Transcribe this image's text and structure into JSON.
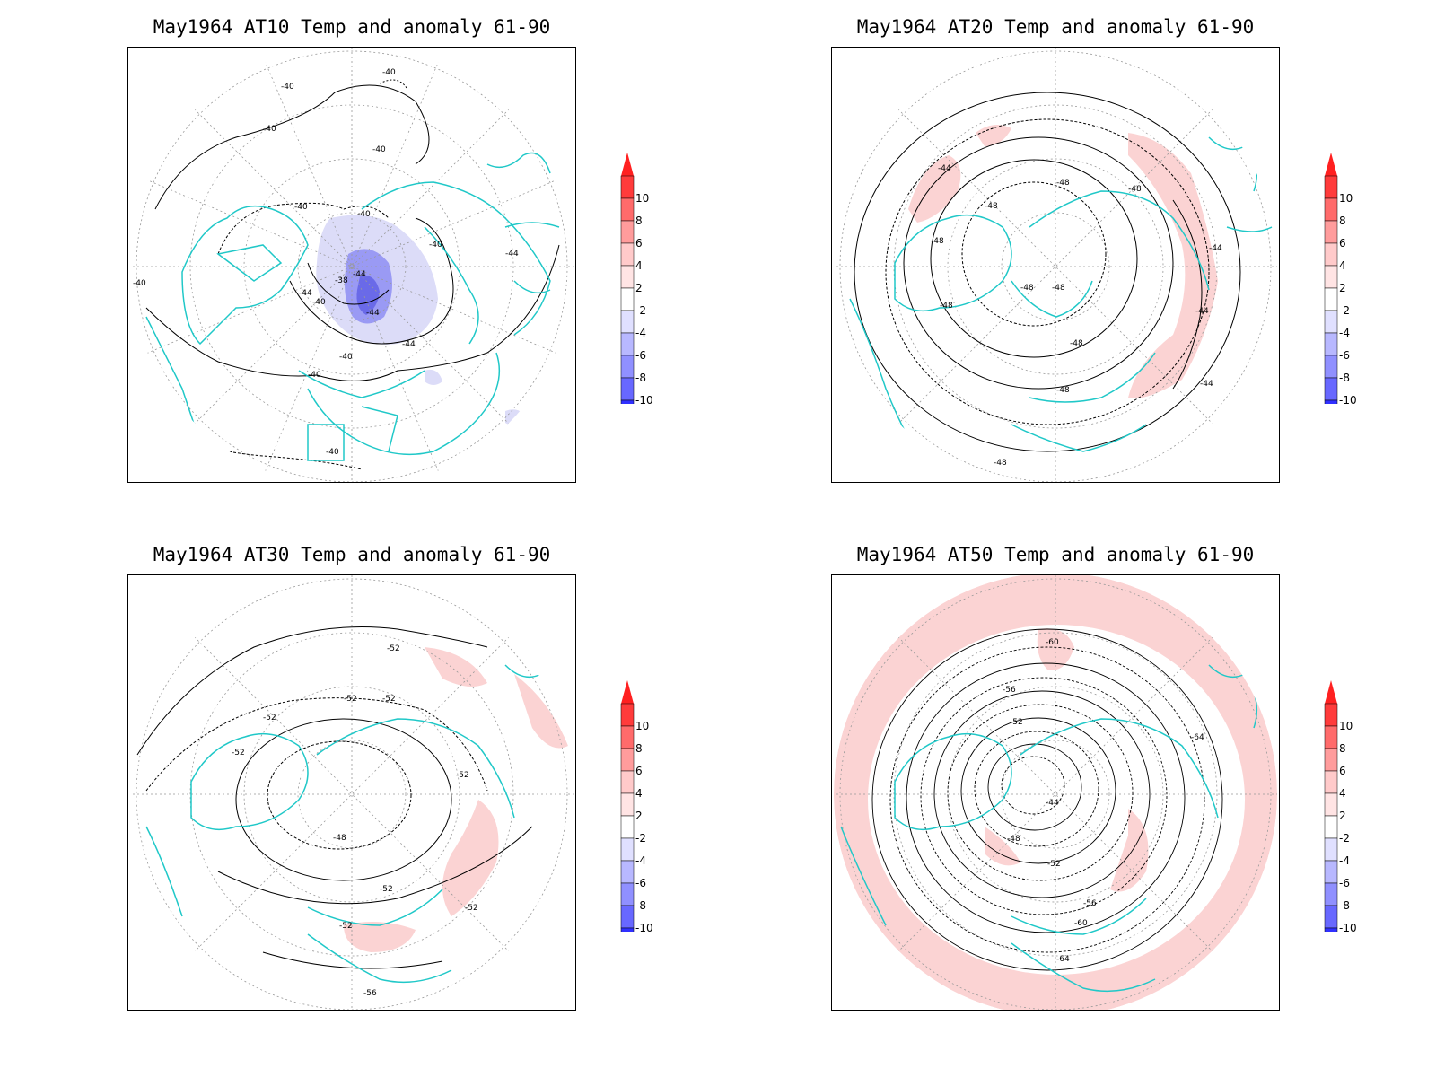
{
  "colorbar": {
    "labels": [
      "10",
      "8",
      "6",
      "4",
      "2",
      "-2",
      "-4",
      "-6",
      "-8",
      "-10"
    ],
    "colors": [
      "#ff3b3b",
      "#ff6b6b",
      "#ff9c9c",
      "#ffcaca",
      "#ffe4e4",
      "#ffffff",
      "#e0e0ff",
      "#b8b8ff",
      "#9090ff",
      "#6868ff",
      "#3030ff"
    ],
    "arrow_up_color": "#ff2020",
    "arrow_down_color": "#2020ff"
  },
  "colors": {
    "coastline": "#20c8c8",
    "contour": "#000000",
    "grid": "#999999",
    "warm_anomaly": "#fbd3d3",
    "cold_anomaly_light": "#d8d8f8",
    "cold_anomaly_strong": "#7878ee"
  },
  "panels": [
    {
      "title": "May1964 AT10 Temp and anomaly 61-90",
      "contour_labels": [
        "-40",
        "-40",
        "-40",
        "-40",
        "-40",
        "-40",
        "-40",
        "-40",
        "-44",
        "-44",
        "-38",
        "-44",
        "-40",
        "-44",
        "-44",
        "-40",
        "-40",
        "-40"
      ],
      "anomaly": "cold"
    },
    {
      "title": "May1964 AT20 Temp and anomaly 61-90",
      "contour_labels": [
        "-44",
        "-48",
        "-48",
        "-48",
        "-48",
        "-44",
        "-44",
        "-48",
        "-48",
        "-48",
        "-48",
        "-48",
        "-44",
        "-48"
      ],
      "anomaly": "warm"
    },
    {
      "title": "May1964 AT30 Temp and anomaly 61-90",
      "contour_labels": [
        "-52",
        "-52",
        "-52",
        "-52",
        "-52",
        "-48",
        "-52",
        "-52",
        "-52",
        "-52",
        "-56"
      ],
      "anomaly": "warm"
    },
    {
      "title": "May1964 AT50 Temp and anomaly 61-90",
      "contour_labels": [
        "-60",
        "-56",
        "-52",
        "-64",
        "-44",
        "-48",
        "-52",
        "-56",
        "-60",
        "-64"
      ],
      "anomaly": "warm-ring"
    }
  ]
}
